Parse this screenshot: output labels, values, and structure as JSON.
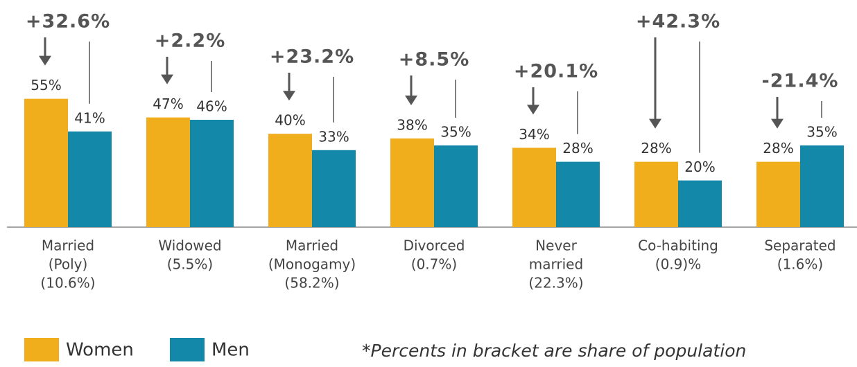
{
  "chart_data": {
    "type": "bar",
    "categories": [
      [
        "Married",
        "(Poly)",
        "(10.6%)"
      ],
      [
        "Widowed",
        "(5.5%)"
      ],
      [
        "Married",
        "(Monogamy)",
        "(58.2%)"
      ],
      [
        "Divorced",
        "(0.7%)"
      ],
      [
        "Never",
        "married",
        "(22.3%)"
      ],
      [
        "Co-habiting",
        "(0.9)%"
      ],
      [
        "Separated",
        "(1.6%)"
      ]
    ],
    "series": [
      {
        "name": "Women",
        "color": "#f0ae1d",
        "values": [
          55,
          47,
          40,
          38,
          34,
          28,
          28
        ],
        "value_labels": [
          "55%",
          "47%",
          "40%",
          "38%",
          "34%",
          "28%",
          "28%"
        ]
      },
      {
        "name": "Men",
        "color": "#1488a8",
        "values": [
          41,
          46,
          33,
          35,
          28,
          20,
          35
        ],
        "value_labels": [
          "41%",
          "46%",
          "33%",
          "35%",
          "28%",
          "20%",
          "35%"
        ]
      }
    ],
    "annotations": [
      "+32.6%",
      "+2.2%",
      "+23.2%",
      "+8.5%",
      "+20.1%",
      "+42.3%",
      "-21.4%"
    ],
    "footnote": "*Percents in bracket are share of population"
  }
}
